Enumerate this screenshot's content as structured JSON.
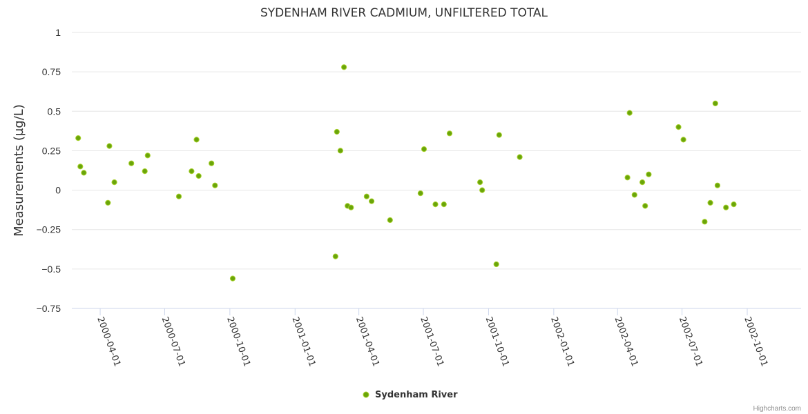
{
  "chart_data": {
    "type": "scatter",
    "title": "SYDENHAM RIVER CADMIUM, UNFILTERED TOTAL",
    "ylabel": "Measurements (µg/L)",
    "xlabel": "",
    "ylim": [
      -0.75,
      1
    ],
    "yticks": [
      "1",
      "0.75",
      "0.5",
      "0.25",
      "0",
      "−0.25",
      "−0.5",
      "−0.75"
    ],
    "ytick_values": [
      1,
      0.75,
      0.5,
      0.25,
      0,
      -0.25,
      -0.5,
      -0.75
    ],
    "xlim": [
      "2000-02-21",
      "2002-12-16"
    ],
    "xticks": [
      "2000-04-01",
      "2000-07-01",
      "2000-10-01",
      "2001-01-01",
      "2001-04-01",
      "2001-07-01",
      "2001-10-01",
      "2002-01-01",
      "2002-04-01",
      "2002-07-01",
      "2002-10-01"
    ],
    "grid": true,
    "legend_position": "bottom-center",
    "series": [
      {
        "name": "Sydenham River",
        "color": "#6aa50a",
        "edge_color": "#a8d12c",
        "points": [
          {
            "date": "2000-03-01",
            "value": 0.33
          },
          {
            "date": "2000-03-04",
            "value": 0.15
          },
          {
            "date": "2000-03-09",
            "value": 0.11
          },
          {
            "date": "2000-04-12",
            "value": -0.08
          },
          {
            "date": "2000-04-14",
            "value": 0.28
          },
          {
            "date": "2000-04-21",
            "value": 0.05
          },
          {
            "date": "2000-05-15",
            "value": 0.17
          },
          {
            "date": "2000-06-03",
            "value": 0.12
          },
          {
            "date": "2000-06-07",
            "value": 0.22
          },
          {
            "date": "2000-07-21",
            "value": -0.04
          },
          {
            "date": "2000-08-08",
            "value": 0.12
          },
          {
            "date": "2000-08-15",
            "value": 0.32
          },
          {
            "date": "2000-08-18",
            "value": 0.09
          },
          {
            "date": "2000-09-05",
            "value": 0.17
          },
          {
            "date": "2000-09-10",
            "value": 0.03
          },
          {
            "date": "2000-10-05",
            "value": -0.56
          },
          {
            "date": "2001-02-27",
            "value": -0.42
          },
          {
            "date": "2001-03-01",
            "value": 0.37
          },
          {
            "date": "2001-03-06",
            "value": 0.25
          },
          {
            "date": "2001-03-11",
            "value": 0.78
          },
          {
            "date": "2001-03-16",
            "value": -0.1
          },
          {
            "date": "2001-03-21",
            "value": -0.11
          },
          {
            "date": "2001-04-12",
            "value": -0.04
          },
          {
            "date": "2001-04-19",
            "value": -0.07
          },
          {
            "date": "2001-05-15",
            "value": -0.19
          },
          {
            "date": "2001-06-27",
            "value": -0.02
          },
          {
            "date": "2001-07-02",
            "value": 0.26
          },
          {
            "date": "2001-07-18",
            "value": -0.09
          },
          {
            "date": "2001-07-30",
            "value": -0.09
          },
          {
            "date": "2001-08-07",
            "value": 0.36
          },
          {
            "date": "2001-09-19",
            "value": 0.05
          },
          {
            "date": "2001-09-22",
            "value": 0.0
          },
          {
            "date": "2001-10-12",
            "value": -0.47
          },
          {
            "date": "2001-10-16",
            "value": 0.35
          },
          {
            "date": "2001-11-14",
            "value": 0.21
          },
          {
            "date": "2002-04-15",
            "value": 0.08
          },
          {
            "date": "2002-04-18",
            "value": 0.49
          },
          {
            "date": "2002-04-25",
            "value": -0.03
          },
          {
            "date": "2002-05-06",
            "value": 0.05
          },
          {
            "date": "2002-05-10",
            "value": -0.1
          },
          {
            "date": "2002-05-15",
            "value": 0.1
          },
          {
            "date": "2002-06-26",
            "value": 0.4
          },
          {
            "date": "2002-07-03",
            "value": 0.32
          },
          {
            "date": "2002-08-02",
            "value": -0.2
          },
          {
            "date": "2002-08-10",
            "value": -0.08
          },
          {
            "date": "2002-08-17",
            "value": 0.55
          },
          {
            "date": "2002-08-20",
            "value": 0.03
          },
          {
            "date": "2002-09-01",
            "value": -0.11
          },
          {
            "date": "2002-09-12",
            "value": -0.09
          }
        ]
      }
    ]
  },
  "credit": "Highcharts.com"
}
